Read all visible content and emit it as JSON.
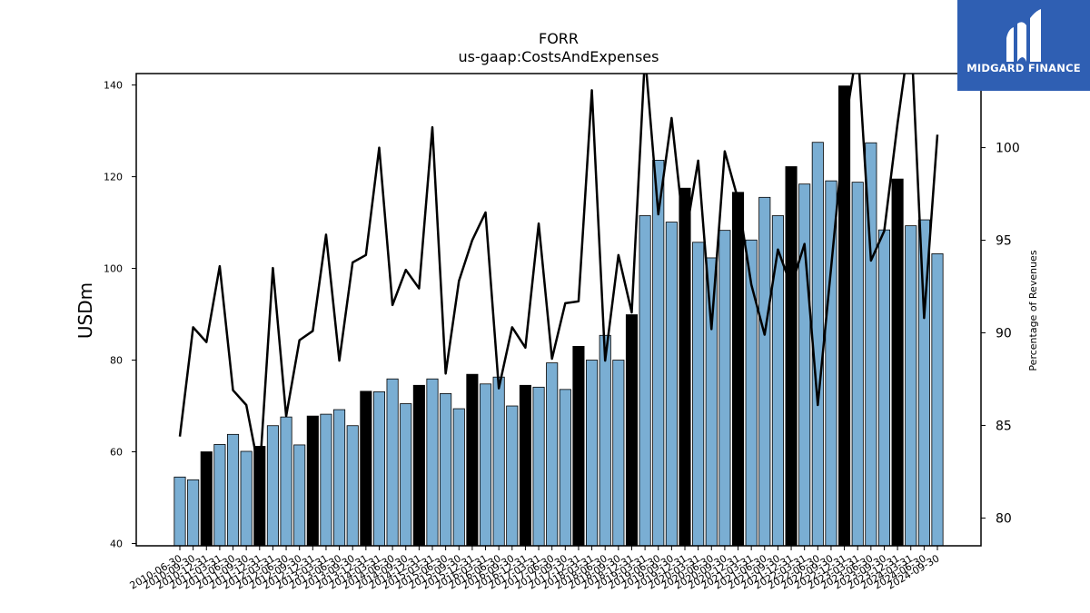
{
  "brand": {
    "name": "MIDGARD FINANCE",
    "bg_color": "#2f5fb3",
    "text_color": "#ffffff"
  },
  "chart_data": {
    "type": "bar",
    "title": "FORR",
    "subtitle": "us-gaap:CostsAndExpenses",
    "ylabel": "USDm",
    "y2label": "Percentage of Revenues",
    "ylim": [
      39.5,
      142.5
    ],
    "y2lim": [
      78.5,
      104.0
    ],
    "yticks": [
      40,
      60,
      80,
      100,
      120,
      140
    ],
    "y2ticks": [
      80,
      85,
      90,
      95,
      100
    ],
    "bar_color": "#7aaed3",
    "highlight_color": "#000000",
    "line_color": "#000000",
    "categories": [
      "2010-06-30",
      "2010-09-30",
      "2010-12-31",
      "2011-03-31",
      "2011-06-30",
      "2011-09-30",
      "2011-12-31",
      "2012-03-31",
      "2012-06-30",
      "2012-09-30",
      "2012-12-31",
      "2013-03-31",
      "2013-06-30",
      "2013-09-30",
      "2013-12-31",
      "2014-03-31",
      "2014-06-30",
      "2014-09-30",
      "2014-12-31",
      "2015-03-31",
      "2015-06-30",
      "2015-09-30",
      "2015-12-31",
      "2016-03-31",
      "2016-06-30",
      "2016-09-30",
      "2016-12-31",
      "2017-03-31",
      "2017-06-30",
      "2017-09-30",
      "2017-12-31",
      "2018-03-31",
      "2018-06-30",
      "2018-09-30",
      "2018-12-31",
      "2019-03-31",
      "2019-06-30",
      "2019-09-30",
      "2019-12-31",
      "2020-03-31",
      "2020-06-30",
      "2020-09-30",
      "2020-12-31",
      "2021-03-31",
      "2021-06-30",
      "2021-09-30",
      "2021-12-31",
      "2022-03-31",
      "2022-06-30",
      "2022-09-30",
      "2022-12-31",
      "2023-03-31",
      "2023-06-30",
      "2023-09-30",
      "2023-12-31",
      "2024-03-31",
      "2024-06-30",
      "2024-09-30"
    ],
    "series": [
      {
        "kind": "bar",
        "values": [
          54.5,
          53.9,
          60.0,
          61.6,
          63.8,
          60.1,
          61.2,
          65.7,
          67.6,
          61.5,
          67.8,
          68.2,
          69.2,
          65.7,
          73.2,
          73.1,
          75.9,
          70.5,
          74.5,
          75.9,
          72.7,
          69.4,
          76.9,
          74.8,
          76.3,
          70.0,
          74.5,
          74.1,
          79.4,
          73.6,
          83.0,
          80.0,
          85.4,
          80.0,
          89.9,
          111.5,
          123.6,
          110.1,
          117.5,
          105.7,
          102.3,
          108.3,
          116.6,
          106.2,
          115.5,
          111.5,
          122.2,
          118.4,
          127.5,
          119.1,
          139.8,
          118.8,
          127.4,
          108.4,
          119.5,
          109.3,
          110.6,
          103.2
        ],
        "highlight": [
          false,
          false,
          true,
          false,
          false,
          false,
          true,
          false,
          false,
          false,
          true,
          false,
          false,
          false,
          true,
          false,
          false,
          false,
          true,
          false,
          false,
          false,
          true,
          false,
          false,
          false,
          true,
          false,
          false,
          false,
          true,
          false,
          false,
          false,
          true,
          false,
          false,
          false,
          true,
          false,
          false,
          false,
          true,
          false,
          false,
          false,
          true,
          false,
          false,
          false,
          true,
          false,
          false,
          false,
          true,
          false,
          false,
          false
        ]
      },
      {
        "kind": "line",
        "axis": "right",
        "values": [
          84.4,
          90.3,
          89.5,
          93.6,
          86.9,
          86.1,
          82.4,
          93.5,
          85.5,
          89.6,
          90.1,
          95.3,
          88.5,
          93.8,
          94.2,
          100.0,
          91.5,
          93.4,
          92.4,
          101.1,
          87.8,
          92.8,
          95.0,
          96.5,
          87.0,
          90.3,
          89.2,
          95.9,
          88.6,
          91.6,
          91.7,
          103.1,
          88.5,
          94.2,
          91.1,
          105.0,
          96.4,
          101.6,
          95.0,
          99.3,
          90.2,
          99.8,
          97.2,
          92.6,
          89.9,
          94.5,
          92.5,
          94.8,
          86.1,
          93.5,
          101.0,
          105.5,
          93.9,
          95.5,
          101.3,
          106.5,
          90.8,
          100.7
        ]
      }
    ]
  }
}
